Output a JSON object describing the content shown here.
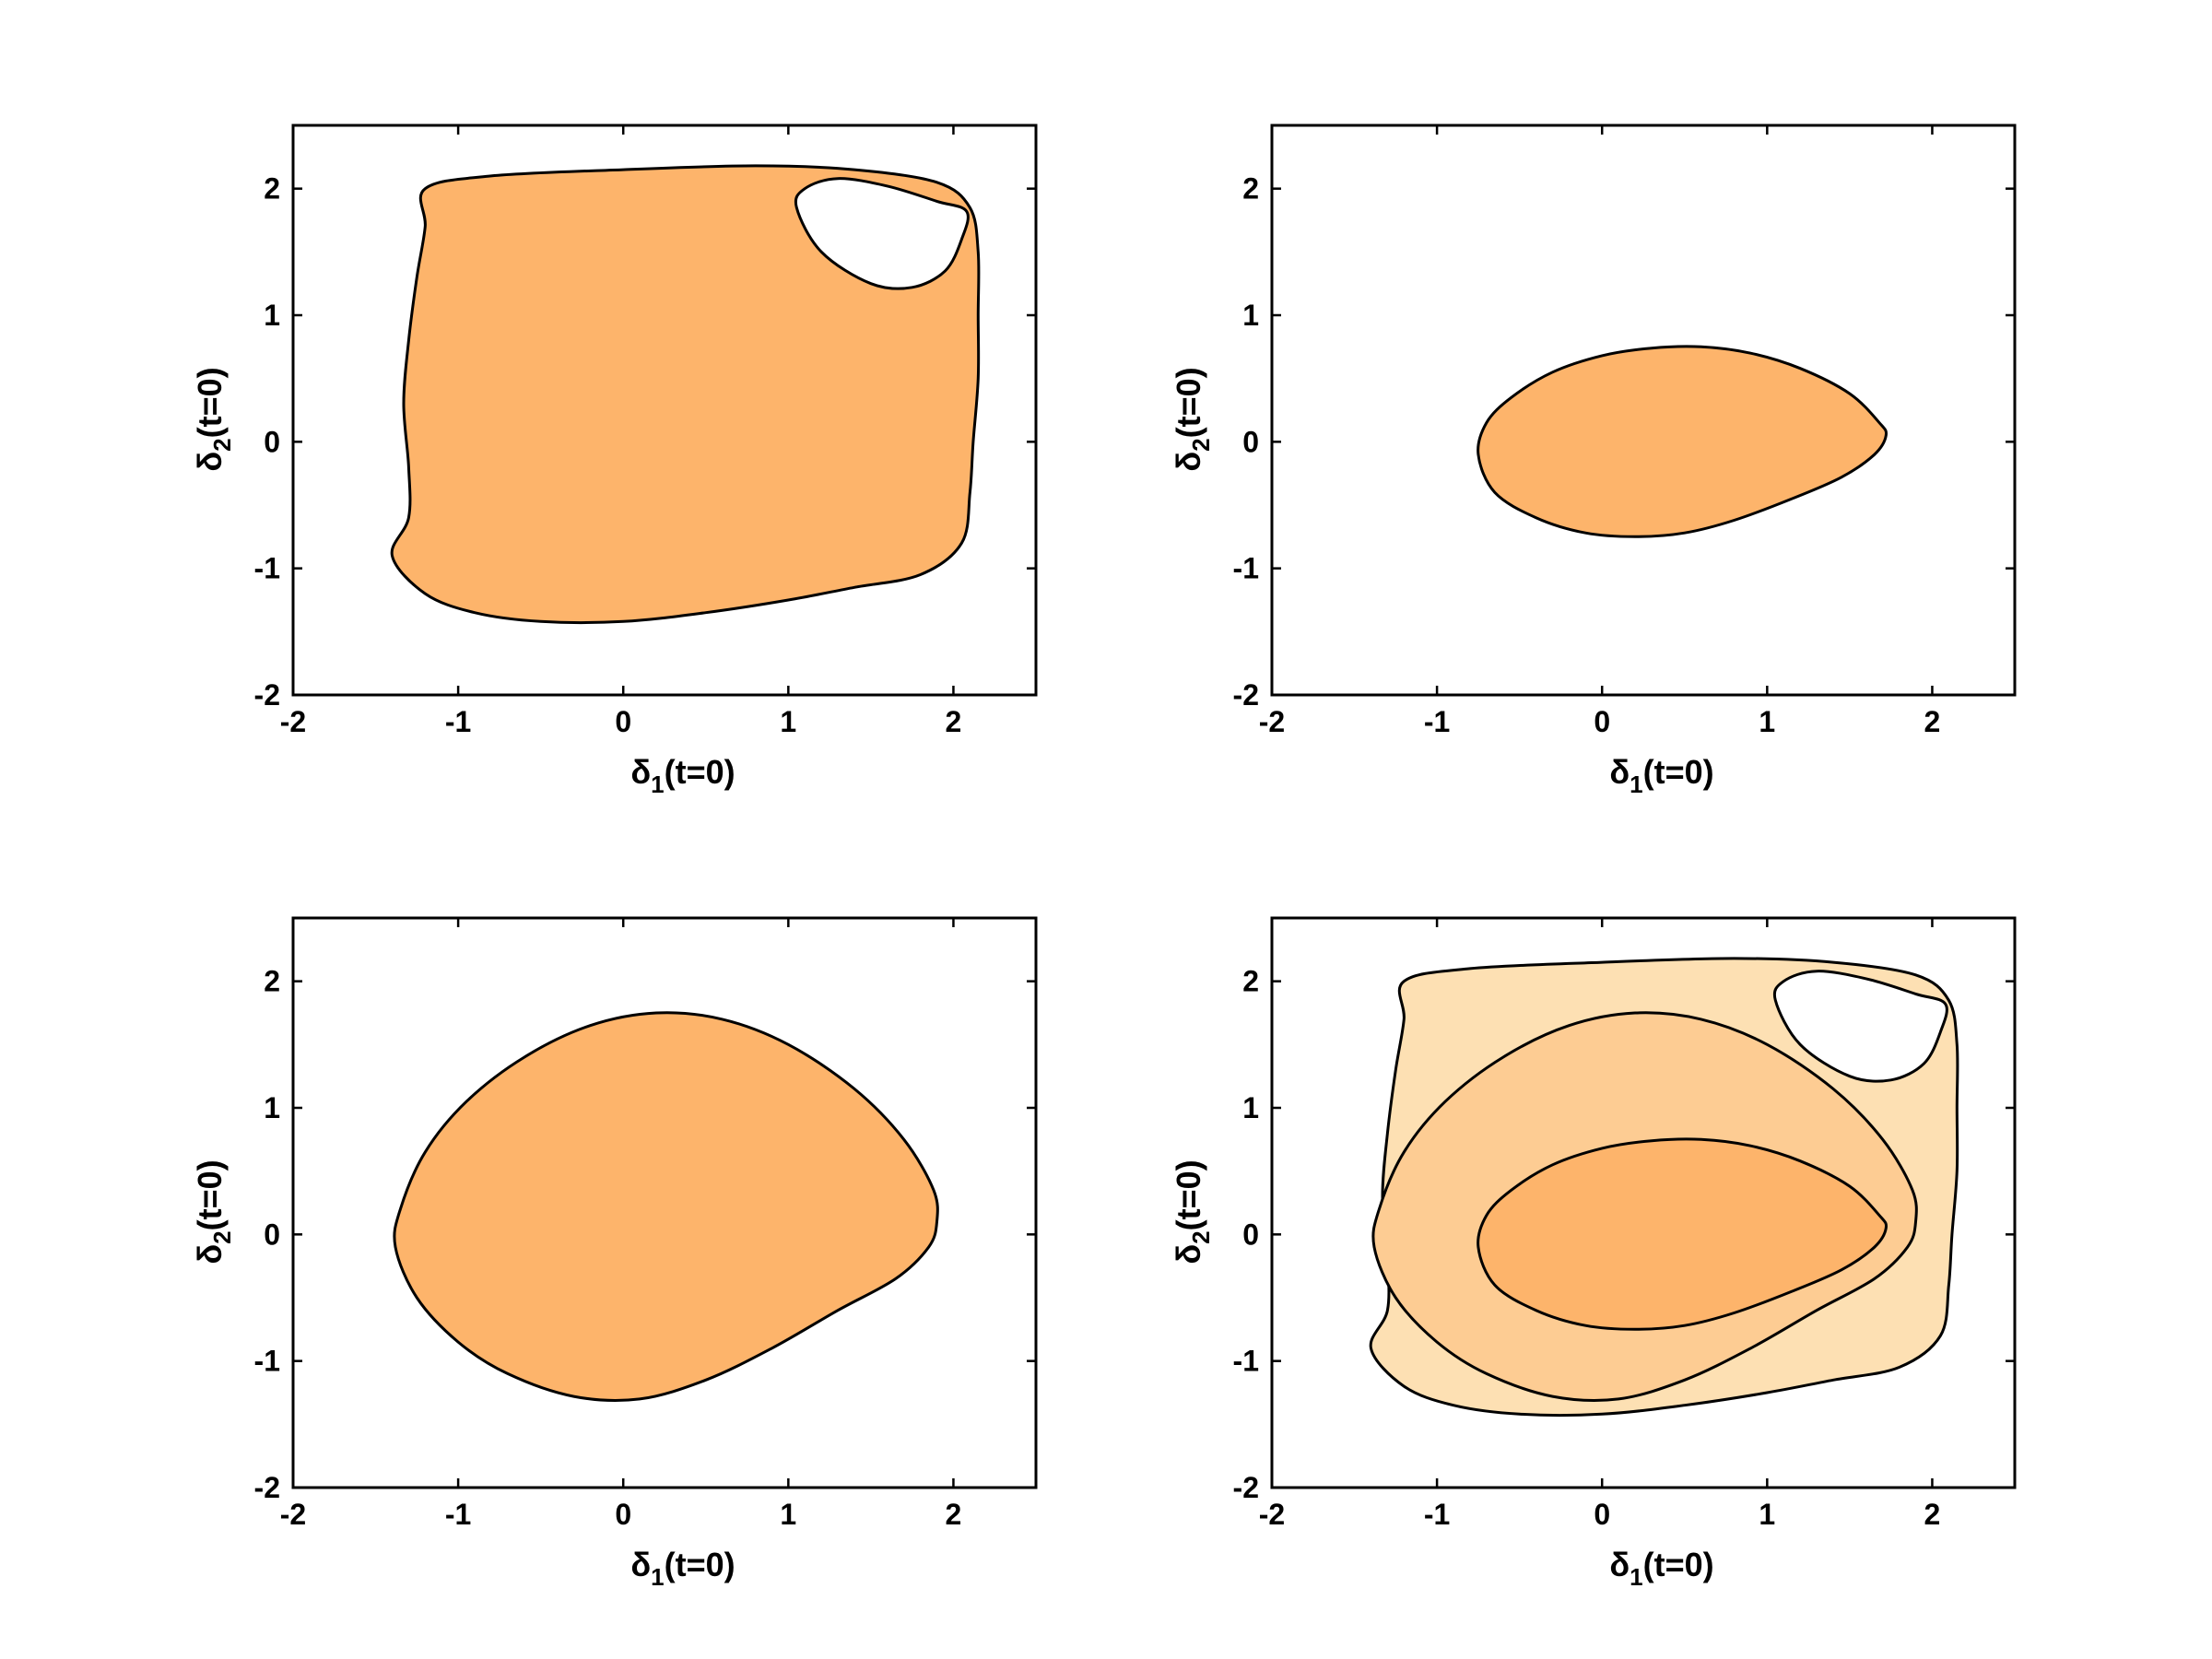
{
  "figure": {
    "colors": {
      "region_dark": "#fdb46b",
      "region_mid": "#fdcc93",
      "region_light": "#fde0b3",
      "hole": "#ffffff",
      "outline": "#000000"
    }
  },
  "chart_data": [
    {
      "type": "area",
      "panel": "top-left",
      "xlabel": {
        "main": "δ",
        "sub": "1",
        "suffix": "(t=0)"
      },
      "ylabel": {
        "main": "δ",
        "sub": "2",
        "suffix": "(t=0)"
      },
      "xlim": [
        -2,
        2.5
      ],
      "ylim": [
        -2,
        2.5
      ],
      "xticks": [
        "-2",
        "-1",
        "0",
        "1",
        "2"
      ],
      "yticks": [
        "-2",
        "-1",
        "0",
        "1",
        "2"
      ],
      "regions": [
        {
          "name": "basin",
          "fill": "region_dark",
          "points": [
            [
              -1.2,
              2.0
            ],
            [
              -0.8,
              2.1
            ],
            [
              0.0,
              2.15
            ],
            [
              0.8,
              2.18
            ],
            [
              1.4,
              2.15
            ],
            [
              1.9,
              2.05
            ],
            [
              2.1,
              1.85
            ],
            [
              2.15,
              1.5
            ],
            [
              2.15,
              1.0
            ],
            [
              2.15,
              0.5
            ],
            [
              2.12,
              0.0
            ],
            [
              2.1,
              -0.4
            ],
            [
              2.05,
              -0.8
            ],
            [
              1.8,
              -1.05
            ],
            [
              1.4,
              -1.15
            ],
            [
              1.0,
              -1.25
            ],
            [
              0.5,
              -1.35
            ],
            [
              0.0,
              -1.42
            ],
            [
              -0.5,
              -1.42
            ],
            [
              -0.9,
              -1.35
            ],
            [
              -1.2,
              -1.2
            ],
            [
              -1.4,
              -0.9
            ],
            [
              -1.3,
              -0.6
            ],
            [
              -1.3,
              -0.2
            ],
            [
              -1.33,
              0.3
            ],
            [
              -1.3,
              0.8
            ],
            [
              -1.25,
              1.3
            ],
            [
              -1.2,
              1.7
            ]
          ]
        },
        {
          "name": "hole",
          "fill": "hole",
          "points": [
            [
              1.05,
              1.85
            ],
            [
              1.1,
              2.0
            ],
            [
              1.3,
              2.08
            ],
            [
              1.6,
              2.02
            ],
            [
              1.9,
              1.9
            ],
            [
              2.08,
              1.82
            ],
            [
              2.05,
              1.6
            ],
            [
              1.95,
              1.35
            ],
            [
              1.75,
              1.22
            ],
            [
              1.5,
              1.25
            ],
            [
              1.2,
              1.5
            ]
          ]
        }
      ]
    },
    {
      "type": "area",
      "panel": "top-right",
      "xlabel": {
        "main": "δ",
        "sub": "1",
        "suffix": "(t=0)"
      },
      "ylabel": {
        "main": "δ",
        "sub": "2",
        "suffix": "(t=0)"
      },
      "xlim": [
        -2,
        2.5
      ],
      "ylim": [
        -2,
        2.5
      ],
      "xticks": [
        "-2",
        "-1",
        "0",
        "1",
        "2"
      ],
      "yticks": [
        "-2",
        "-1",
        "0",
        "1",
        "2"
      ],
      "regions": [
        {
          "name": "basin",
          "fill": "region_dark",
          "points": [
            [
              -0.75,
              -0.1
            ],
            [
              -0.7,
              0.15
            ],
            [
              -0.55,
              0.35
            ],
            [
              -0.3,
              0.55
            ],
            [
              0.0,
              0.68
            ],
            [
              0.3,
              0.74
            ],
            [
              0.6,
              0.75
            ],
            [
              0.9,
              0.7
            ],
            [
              1.2,
              0.58
            ],
            [
              1.5,
              0.38
            ],
            [
              1.68,
              0.15
            ],
            [
              1.72,
              0.05
            ],
            [
              1.65,
              -0.1
            ],
            [
              1.45,
              -0.28
            ],
            [
              1.15,
              -0.45
            ],
            [
              0.8,
              -0.62
            ],
            [
              0.5,
              -0.72
            ],
            [
              0.2,
              -0.75
            ],
            [
              -0.1,
              -0.72
            ],
            [
              -0.4,
              -0.6
            ],
            [
              -0.65,
              -0.4
            ]
          ]
        }
      ]
    },
    {
      "type": "area",
      "panel": "bottom-left",
      "xlabel": {
        "main": "δ",
        "sub": "1",
        "suffix": "(t=0)"
      },
      "ylabel": {
        "main": "δ",
        "sub": "2",
        "suffix": "(t=0)"
      },
      "xlim": [
        -2,
        2.5
      ],
      "ylim": [
        -2,
        2.5
      ],
      "xticks": [
        "-2",
        "-1",
        "0",
        "1",
        "2"
      ],
      "yticks": [
        "-2",
        "-1",
        "0",
        "1",
        "2"
      ],
      "regions": [
        {
          "name": "basin",
          "fill": "region_dark",
          "points": [
            [
              -1.38,
              -0.1
            ],
            [
              -1.35,
              0.2
            ],
            [
              -1.2,
              0.65
            ],
            [
              -0.95,
              1.05
            ],
            [
              -0.6,
              1.4
            ],
            [
              -0.2,
              1.65
            ],
            [
              0.2,
              1.75
            ],
            [
              0.6,
              1.7
            ],
            [
              1.0,
              1.5
            ],
            [
              1.4,
              1.15
            ],
            [
              1.7,
              0.75
            ],
            [
              1.88,
              0.35
            ],
            [
              1.9,
              0.1
            ],
            [
              1.85,
              -0.1
            ],
            [
              1.65,
              -0.35
            ],
            [
              1.3,
              -0.6
            ],
            [
              0.9,
              -0.9
            ],
            [
              0.5,
              -1.15
            ],
            [
              0.1,
              -1.3
            ],
            [
              -0.3,
              -1.28
            ],
            [
              -0.7,
              -1.1
            ],
            [
              -1.0,
              -0.85
            ],
            [
              -1.25,
              -0.5
            ]
          ]
        }
      ]
    },
    {
      "type": "area",
      "panel": "bottom-right",
      "xlabel": {
        "main": "δ",
        "sub": "1",
        "suffix": "(t=0)"
      },
      "ylabel": {
        "main": "δ",
        "sub": "2",
        "suffix": "(t=0)"
      },
      "xlim": [
        -2,
        2.5
      ],
      "ylim": [
        -2,
        2.5
      ],
      "xticks": [
        "-2",
        "-1",
        "0",
        "1",
        "2"
      ],
      "yticks": [
        "-2",
        "-1",
        "0",
        "1",
        "2"
      ],
      "regions": [
        {
          "name": "outer-basin",
          "fill": "region_light",
          "points": [
            [
              -1.2,
              2.0
            ],
            [
              -0.8,
              2.1
            ],
            [
              0.0,
              2.15
            ],
            [
              0.8,
              2.18
            ],
            [
              1.4,
              2.15
            ],
            [
              1.9,
              2.05
            ],
            [
              2.1,
              1.85
            ],
            [
              2.15,
              1.5
            ],
            [
              2.15,
              1.0
            ],
            [
              2.15,
              0.5
            ],
            [
              2.12,
              0.0
            ],
            [
              2.1,
              -0.4
            ],
            [
              2.05,
              -0.8
            ],
            [
              1.8,
              -1.05
            ],
            [
              1.4,
              -1.15
            ],
            [
              1.0,
              -1.25
            ],
            [
              0.5,
              -1.35
            ],
            [
              0.0,
              -1.42
            ],
            [
              -0.5,
              -1.42
            ],
            [
              -0.9,
              -1.35
            ],
            [
              -1.2,
              -1.2
            ],
            [
              -1.4,
              -0.9
            ],
            [
              -1.3,
              -0.6
            ],
            [
              -1.3,
              -0.2
            ],
            [
              -1.33,
              0.3
            ],
            [
              -1.3,
              0.8
            ],
            [
              -1.25,
              1.3
            ],
            [
              -1.2,
              1.7
            ]
          ]
        },
        {
          "name": "hole",
          "fill": "hole",
          "points": [
            [
              1.05,
              1.85
            ],
            [
              1.1,
              2.0
            ],
            [
              1.3,
              2.08
            ],
            [
              1.6,
              2.02
            ],
            [
              1.9,
              1.9
            ],
            [
              2.08,
              1.82
            ],
            [
              2.05,
              1.6
            ],
            [
              1.95,
              1.35
            ],
            [
              1.75,
              1.22
            ],
            [
              1.5,
              1.25
            ],
            [
              1.2,
              1.5
            ]
          ]
        },
        {
          "name": "middle-basin",
          "fill": "region_mid",
          "points": [
            [
              -1.38,
              -0.1
            ],
            [
              -1.35,
              0.2
            ],
            [
              -1.2,
              0.65
            ],
            [
              -0.95,
              1.05
            ],
            [
              -0.6,
              1.4
            ],
            [
              -0.2,
              1.65
            ],
            [
              0.2,
              1.75
            ],
            [
              0.6,
              1.7
            ],
            [
              1.0,
              1.5
            ],
            [
              1.4,
              1.15
            ],
            [
              1.7,
              0.75
            ],
            [
              1.88,
              0.35
            ],
            [
              1.9,
              0.1
            ],
            [
              1.85,
              -0.1
            ],
            [
              1.65,
              -0.35
            ],
            [
              1.3,
              -0.6
            ],
            [
              0.9,
              -0.9
            ],
            [
              0.5,
              -1.15
            ],
            [
              0.1,
              -1.3
            ],
            [
              -0.3,
              -1.28
            ],
            [
              -0.7,
              -1.1
            ],
            [
              -1.0,
              -0.85
            ],
            [
              -1.25,
              -0.5
            ]
          ]
        },
        {
          "name": "inner-basin",
          "fill": "region_dark",
          "points": [
            [
              -0.75,
              -0.1
            ],
            [
              -0.7,
              0.15
            ],
            [
              -0.55,
              0.35
            ],
            [
              -0.3,
              0.55
            ],
            [
              0.0,
              0.68
            ],
            [
              0.3,
              0.74
            ],
            [
              0.6,
              0.75
            ],
            [
              0.9,
              0.7
            ],
            [
              1.2,
              0.58
            ],
            [
              1.5,
              0.38
            ],
            [
              1.68,
              0.15
            ],
            [
              1.72,
              0.05
            ],
            [
              1.65,
              -0.1
            ],
            [
              1.45,
              -0.28
            ],
            [
              1.15,
              -0.45
            ],
            [
              0.8,
              -0.62
            ],
            [
              0.5,
              -0.72
            ],
            [
              0.2,
              -0.75
            ],
            [
              -0.1,
              -0.72
            ],
            [
              -0.4,
              -0.6
            ],
            [
              -0.65,
              -0.4
            ]
          ]
        }
      ]
    }
  ]
}
